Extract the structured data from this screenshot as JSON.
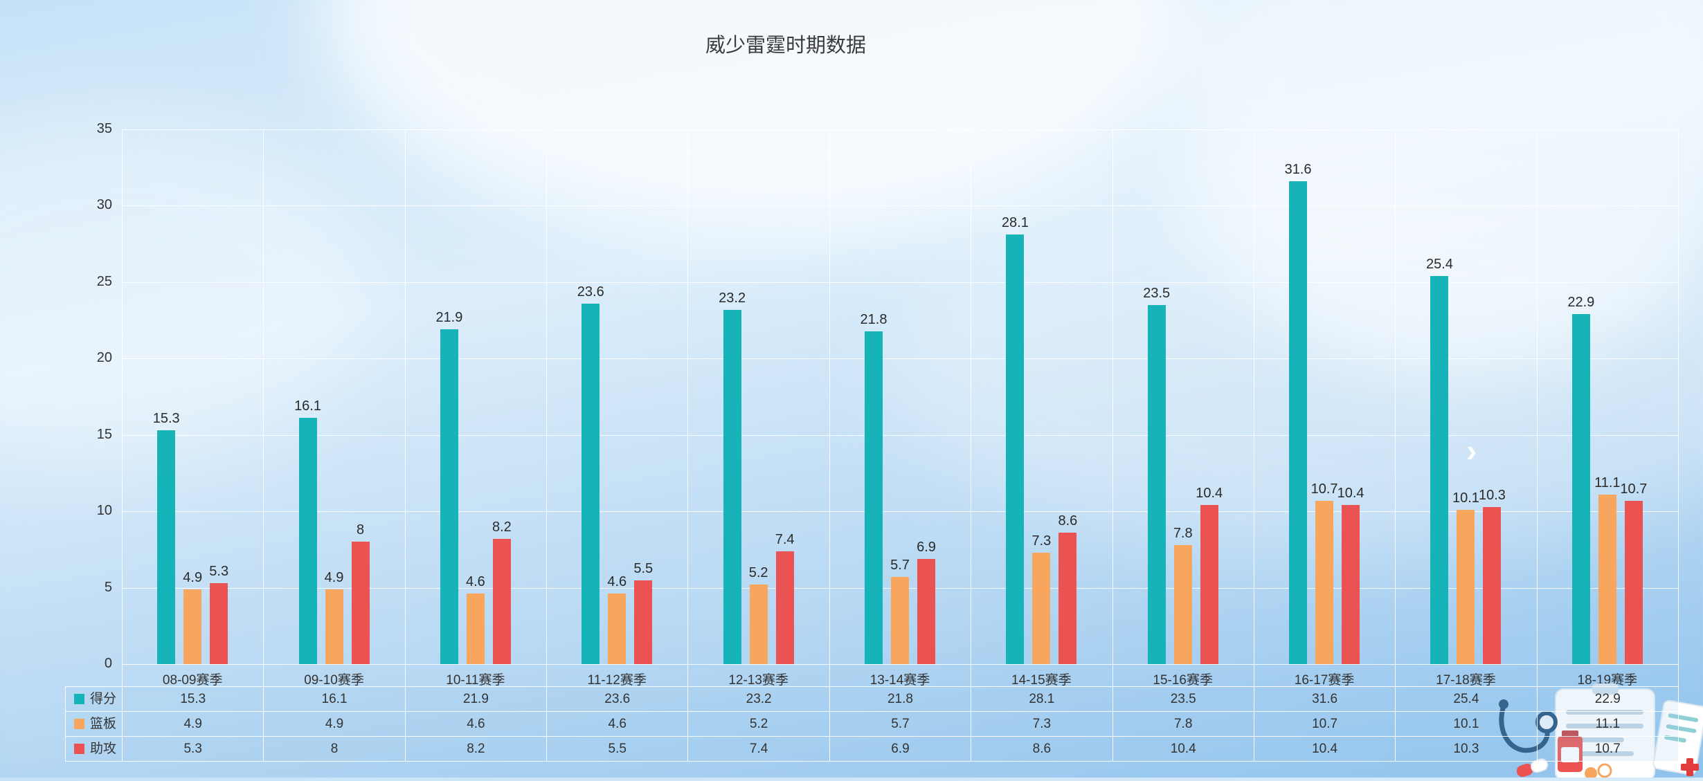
{
  "title": "威少雷霆时期数据",
  "nav": {
    "next_arrow": "›"
  },
  "chart_data": {
    "type": "bar",
    "title": "威少雷霆时期数据",
    "categories": [
      "08-09赛季",
      "09-10赛季",
      "10-11赛季",
      "11-12赛季",
      "12-13赛季",
      "13-14赛季",
      "14-15赛季",
      "15-16赛季",
      "16-17赛季",
      "17-18赛季",
      "18-19赛季"
    ],
    "series": [
      {
        "name": "得分",
        "color": "#16b3b9",
        "values": [
          15.3,
          16.1,
          21.9,
          23.6,
          23.2,
          21.8,
          28.1,
          23.5,
          31.6,
          25.4,
          22.9
        ]
      },
      {
        "name": "篮板",
        "color": "#f8a55e",
        "values": [
          4.9,
          4.9,
          4.6,
          4.6,
          5.2,
          5.7,
          7.3,
          7.8,
          10.7,
          10.1,
          11.1
        ]
      },
      {
        "name": "助攻",
        "color": "#ea5352",
        "values": [
          5.3,
          8,
          8.2,
          5.5,
          7.4,
          6.9,
          8.6,
          10.4,
          10.4,
          10.3,
          10.7
        ]
      }
    ],
    "ylim": [
      0,
      35
    ],
    "yticks": [
      0,
      5,
      10,
      15,
      20,
      25,
      30,
      35
    ],
    "grid": true,
    "value_labels": true,
    "legend_position": "table-left",
    "data_table_below_axis": true
  },
  "icons": {
    "legend_marker": "colored-square",
    "decorative": [
      "stethoscope-icon",
      "clipboard-icon",
      "medicine-bottle-icon",
      "pill-icon",
      "cross-icon"
    ]
  },
  "colors": {
    "points": "#16b3b9",
    "rebounds": "#f8a55e",
    "assists": "#ea5352",
    "grid": "#ffffff",
    "text": "#333333",
    "background_bottom": "#8fc2ec"
  }
}
